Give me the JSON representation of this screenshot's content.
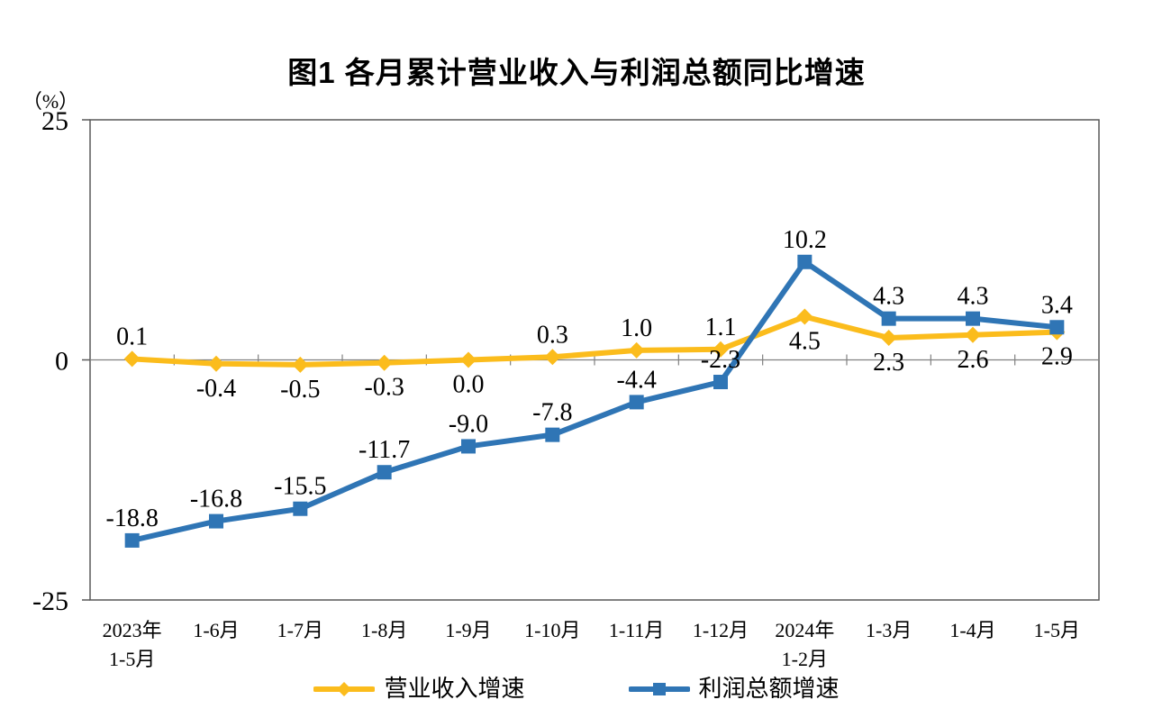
{
  "title": "图1 各月累计营业收入与利润总额同比增速",
  "chart_data": {
    "type": "line",
    "title": "图1 各月累计营业收入与利润总额同比增速",
    "unit": "（%）",
    "ylim": [
      -25,
      25
    ],
    "yticks": [
      25,
      0,
      -25
    ],
    "grid": false,
    "legend_position": "bottom",
    "categories": [
      "2023年\n1-5月",
      "1-6月",
      "1-7月",
      "1-8月",
      "1-9月",
      "1-10月",
      "1-11月",
      "1-12月",
      "2024年\n1-2月",
      "1-3月",
      "1-4月",
      "1-5月"
    ],
    "series": [
      {
        "id": "revenue",
        "name": "营业收入增速",
        "color": "#FBBC1C",
        "marker": "diamond",
        "values": [
          0.1,
          -0.4,
          -0.5,
          -0.3,
          0.0,
          0.3,
          1.0,
          1.1,
          4.5,
          2.3,
          2.6,
          2.9
        ],
        "label_positions": [
          "above",
          "below",
          "below",
          "below",
          "below",
          "above",
          "above",
          "above",
          "below",
          "below",
          "below",
          "below"
        ]
      },
      {
        "id": "profit",
        "name": "利润总额增速",
        "color": "#2F75B5",
        "marker": "square",
        "values": [
          -18.8,
          -16.8,
          -15.5,
          -11.7,
          -9.0,
          -7.8,
          -4.4,
          -2.3,
          10.2,
          4.3,
          4.3,
          3.4
        ],
        "label_positions": [
          "above",
          "above",
          "above",
          "above",
          "above",
          "above",
          "above",
          "above",
          "above",
          "above",
          "above",
          "above"
        ]
      }
    ],
    "colors": {
      "border": "#595959",
      "axis": "#808080",
      "text": "#000000"
    }
  }
}
